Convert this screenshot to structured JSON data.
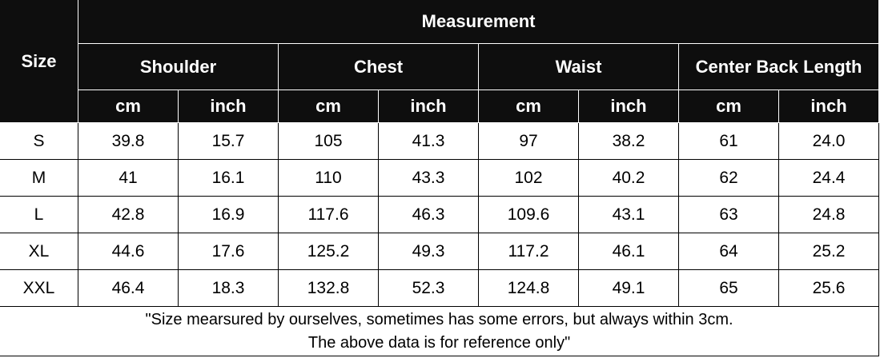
{
  "header": {
    "size_label": "Size",
    "group_label": "Measurement",
    "measures": [
      "Shoulder",
      "Chest",
      "Waist",
      "Center Back Length"
    ],
    "units": [
      "cm",
      "inch"
    ]
  },
  "rows": [
    {
      "size": "S",
      "values": [
        "39.8",
        "15.7",
        "105",
        "41.3",
        "97",
        "38.2",
        "61",
        "24.0"
      ]
    },
    {
      "size": "M",
      "values": [
        "41",
        "16.1",
        "110",
        "43.3",
        "102",
        "40.2",
        "62",
        "24.4"
      ]
    },
    {
      "size": "L",
      "values": [
        "42.8",
        "16.9",
        "117.6",
        "46.3",
        "109.6",
        "43.1",
        "63",
        "24.8"
      ]
    },
    {
      "size": "XL",
      "values": [
        "44.6",
        "17.6",
        "125.2",
        "49.3",
        "117.2",
        "46.1",
        "64",
        "25.2"
      ]
    },
    {
      "size": "XXL",
      "values": [
        "46.4",
        "18.3",
        "132.8",
        "52.3",
        "124.8",
        "49.1",
        "65",
        "25.6"
      ]
    }
  ],
  "note": {
    "line1": "\"Size mearsured by ourselves, sometimes has some errors, but always within 3cm.",
    "line2": "The above data is for reference only\""
  },
  "colors": {
    "header_bg": "#0e0e0e",
    "header_text": "#ffffff",
    "body_text": "#000000"
  }
}
